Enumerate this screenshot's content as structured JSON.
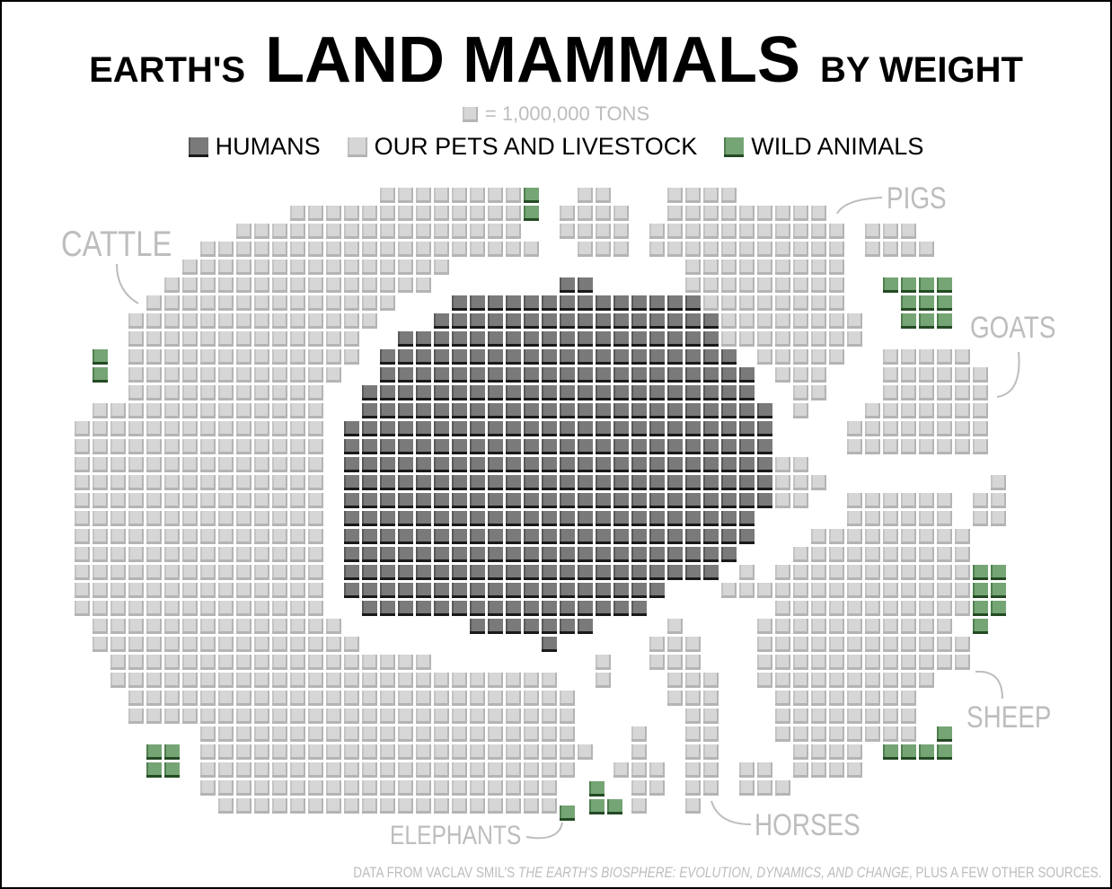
{
  "title": {
    "pre": "EARTH'S",
    "main": "LAND MAMMALS",
    "post": "BY WEIGHT"
  },
  "scale_note": "= 1,000,000 TONS",
  "legend": [
    {
      "label": "HUMANS",
      "kind": "human"
    },
    {
      "label": "OUR PETS AND LIVESTOCK",
      "kind": "light"
    },
    {
      "label": "WILD ANIMALS",
      "kind": "wild"
    }
  ],
  "labels": {
    "cattle": "CATTLE",
    "pigs": "PIGS",
    "goats": "GOATS",
    "sheep": "SHEEP",
    "horses": "HORSES",
    "elephants": "ELEPHANTS"
  },
  "footer": {
    "pre": "DATA FROM VACLAV SMIL'S ",
    "book": "THE EARTH'S BIOSPHERE: EVOLUTION, DYNAMICS, AND CHANGE",
    "post": ", PLUS A FEW OTHER SOURCES."
  },
  "colors": {
    "humans": "#7a7a7a",
    "livestock": "#d6d6d6",
    "wild": "#75a575",
    "label": "#bdbdbd"
  },
  "chart_data": {
    "type": "waffle",
    "unit": "1,000,000 tons per square",
    "categories": [
      "HUMANS",
      "OUR PETS AND LIVESTOCK",
      "WILD ANIMALS"
    ],
    "groups": [
      "CATTLE",
      "PIGS",
      "GOATS",
      "SHEEP",
      "HORSES",
      "ELEPHANTS"
    ]
  }
}
